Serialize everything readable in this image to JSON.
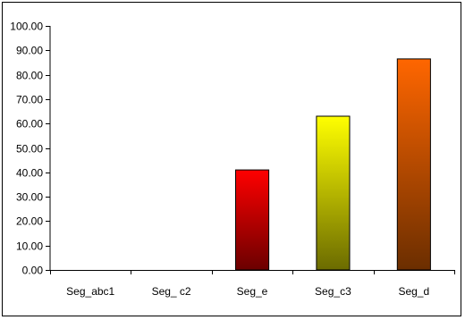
{
  "chart_data": {
    "type": "bar",
    "title": "",
    "xlabel": "",
    "ylabel": "",
    "categories": [
      "Seg_abc1",
      "Seg_ c2",
      "Seg_e",
      "Seg_c3",
      "Seg_d"
    ],
    "values": [
      0,
      0,
      41,
      63,
      86.5
    ],
    "ylim": [
      0,
      100
    ],
    "y_ticks": [
      "0.00",
      "10.00",
      "20.00",
      "30.00",
      "40.00",
      "50.00",
      "60.00",
      "70.00",
      "80.00",
      "90.00",
      "100.00"
    ],
    "grid": false,
    "legend": "none",
    "bar_gradients": [
      {
        "top": "#ff0000",
        "bottom": "#6b0000"
      },
      {
        "top": "#ff0000",
        "bottom": "#6b0000"
      },
      {
        "top": "#ff0000",
        "bottom": "#6b0000"
      },
      {
        "top": "#ffff00",
        "bottom": "#6b6b00"
      },
      {
        "top": "#ff6600",
        "bottom": "#6b2e00"
      }
    ],
    "bar_outline": "#000000",
    "axis_color": "#000000"
  }
}
